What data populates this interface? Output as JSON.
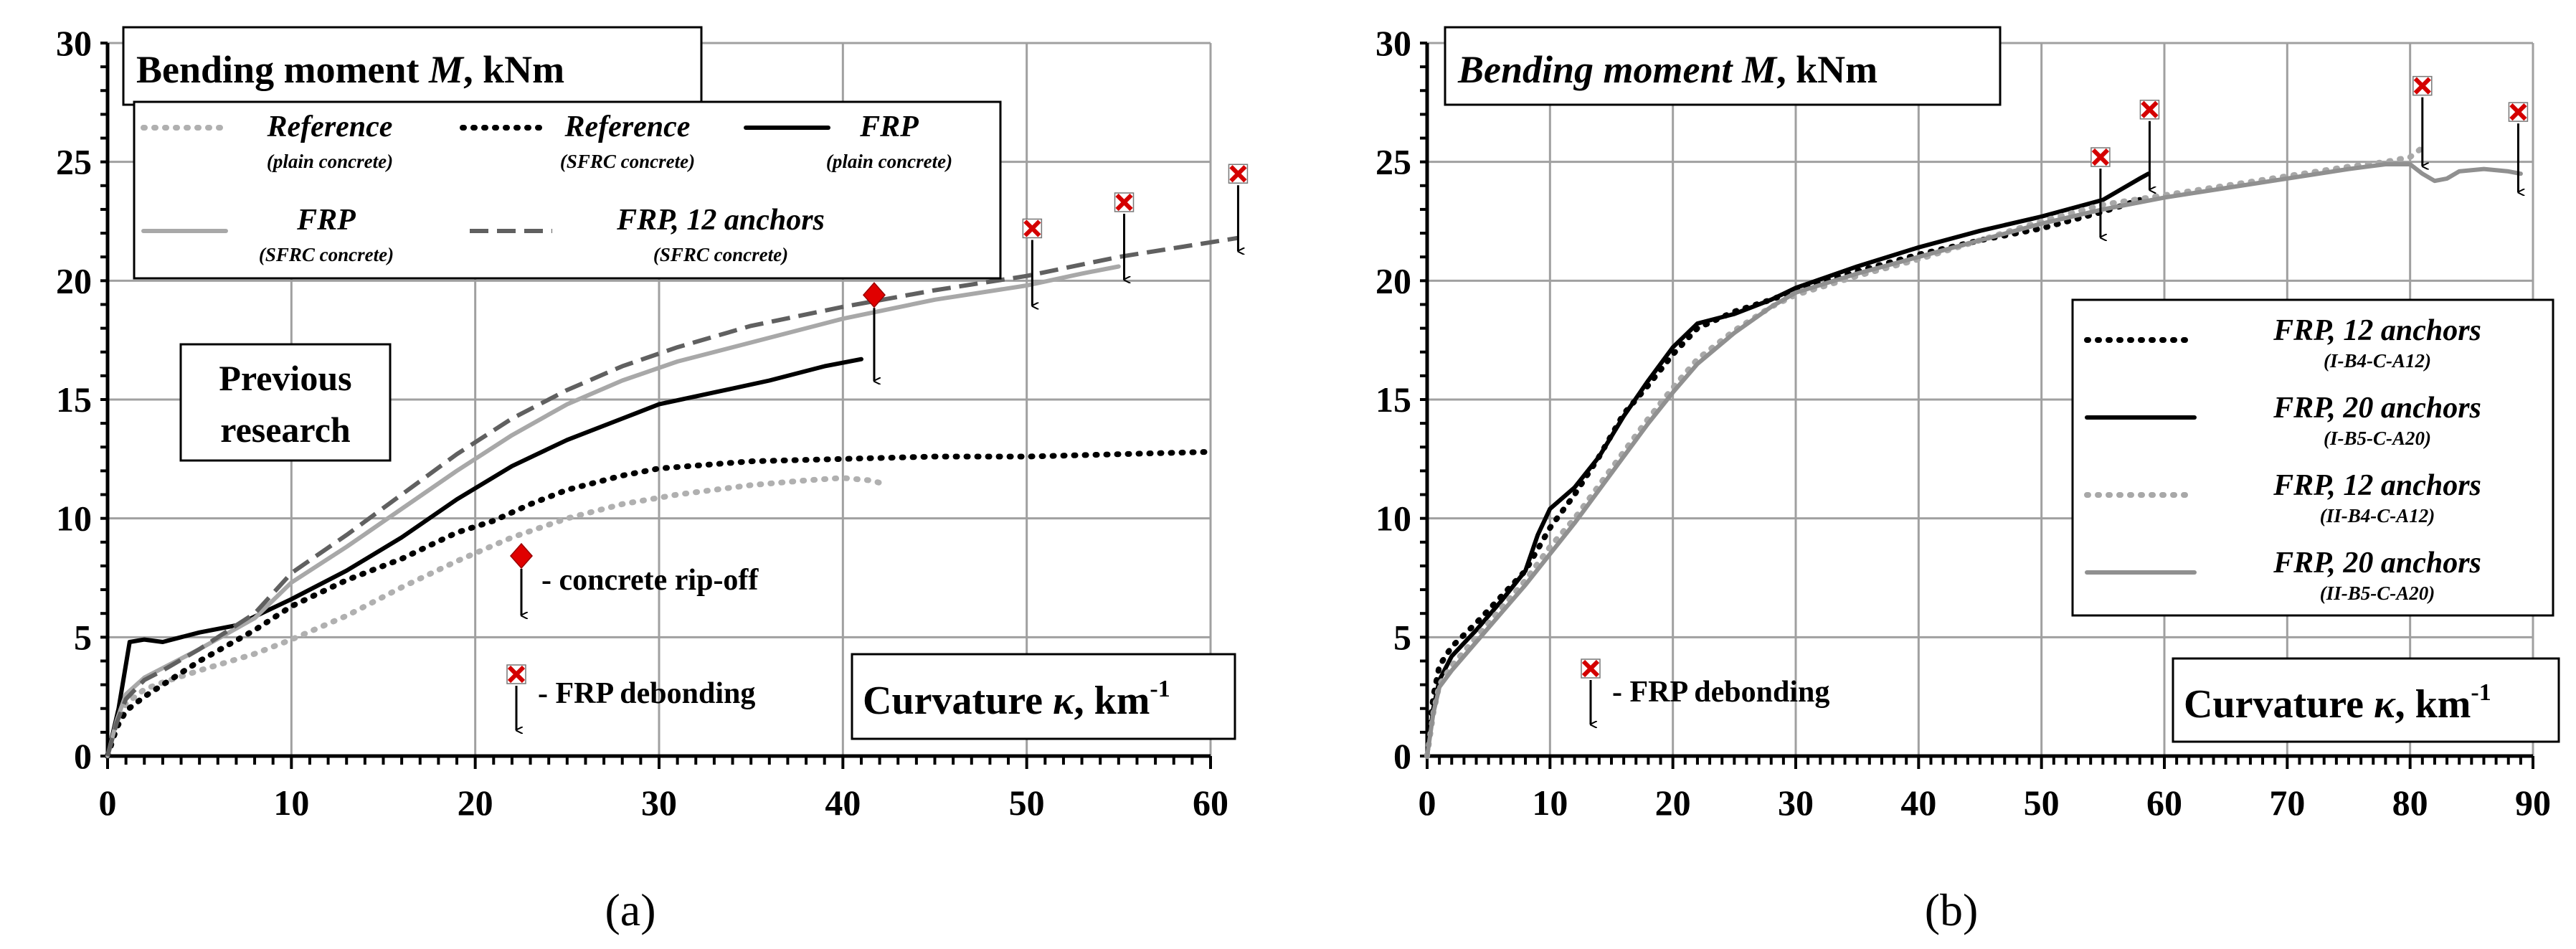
{
  "chart_data": [
    {
      "type": "line",
      "panel_label": "(a)",
      "ylabel_title": "Bending moment",
      "ylabel_var": "M",
      "ylabel_unit": ", kNm",
      "xlabel_title": "Curvature",
      "xlabel_var": "κ",
      "xlabel_unit": ", km",
      "xlabel_exp": "-1",
      "xlim": [
        0,
        60
      ],
      "ylim": [
        0,
        30
      ],
      "xticks": [
        0,
        10,
        20,
        30,
        40,
        50,
        60
      ],
      "yticks": [
        0,
        5,
        10,
        15,
        20,
        25,
        30
      ],
      "grid": true,
      "legend_position": "top-left",
      "inset_box": [
        "Previous",
        "research"
      ],
      "annotations": {
        "rip_off": "- concrete rip-off",
        "debonding": "- FRP debonding"
      },
      "series": [
        {
          "name": "Reference",
          "sub": "(plain concrete)",
          "color": "#b0b0b0",
          "style": "dotted",
          "points": [
            [
              0,
              0
            ],
            [
              0.5,
              1.2
            ],
            [
              1,
              2.2
            ],
            [
              2,
              2.8
            ],
            [
              3,
              3.1
            ],
            [
              5,
              3.6
            ],
            [
              8,
              4.3
            ],
            [
              10,
              4.9
            ],
            [
              13,
              5.9
            ],
            [
              16,
              7.1
            ],
            [
              19,
              8.2
            ],
            [
              22,
              9.2
            ],
            [
              25,
              10
            ],
            [
              28,
              10.6
            ],
            [
              31,
              11
            ],
            [
              35,
              11.4
            ],
            [
              38,
              11.6
            ],
            [
              40,
              11.7
            ],
            [
              41.5,
              11.6
            ],
            [
              42,
              11.5
            ]
          ]
        },
        {
          "name": "Reference",
          "sub": "(SFRC concrete)",
          "color": "#000000",
          "style": "dotted",
          "points": [
            [
              0,
              0
            ],
            [
              0.5,
              1.2
            ],
            [
              1,
              1.9
            ],
            [
              2,
              2.5
            ],
            [
              3,
              3
            ],
            [
              5,
              4
            ],
            [
              8,
              5.3
            ],
            [
              10,
              6.3
            ],
            [
              13,
              7.4
            ],
            [
              16,
              8.3
            ],
            [
              19,
              9.4
            ],
            [
              21,
              9.9
            ],
            [
              23,
              10.6
            ],
            [
              25,
              11.2
            ],
            [
              28,
              11.8
            ],
            [
              30,
              12.1
            ],
            [
              35,
              12.4
            ],
            [
              40,
              12.5
            ],
            [
              45,
              12.6
            ],
            [
              50,
              12.6
            ],
            [
              55,
              12.7
            ],
            [
              60,
              12.8
            ]
          ]
        },
        {
          "name": "FRP",
          "sub": "(plain concrete)",
          "color": "#000000",
          "style": "solid",
          "points": [
            [
              0,
              0
            ],
            [
              0.6,
              2
            ],
            [
              1.2,
              4.8
            ],
            [
              2,
              4.9
            ],
            [
              3,
              4.8
            ],
            [
              4,
              5
            ],
            [
              5,
              5.2
            ],
            [
              7,
              5.5
            ],
            [
              10,
              6.6
            ],
            [
              13,
              7.8
            ],
            [
              16,
              9.2
            ],
            [
              19,
              10.8
            ],
            [
              22,
              12.2
            ],
            [
              25,
              13.3
            ],
            [
              28,
              14.2
            ],
            [
              30,
              14.8
            ],
            [
              33,
              15.3
            ],
            [
              36,
              15.8
            ],
            [
              39,
              16.4
            ],
            [
              41,
              16.7
            ]
          ]
        },
        {
          "name": "FRP",
          "sub": "(SFRC concrete)",
          "color": "#a8a8a8",
          "style": "solid",
          "points": [
            [
              0,
              0
            ],
            [
              0.5,
              1.5
            ],
            [
              1,
              2.6
            ],
            [
              2,
              3.3
            ],
            [
              3,
              3.7
            ],
            [
              5,
              4.5
            ],
            [
              8,
              5.8
            ],
            [
              10,
              7.3
            ],
            [
              13,
              8.8
            ],
            [
              16,
              10.4
            ],
            [
              19,
              12
            ],
            [
              22,
              13.5
            ],
            [
              25,
              14.8
            ],
            [
              28,
              15.8
            ],
            [
              31,
              16.6
            ],
            [
              35,
              17.4
            ],
            [
              40,
              18.4
            ],
            [
              45,
              19.2
            ],
            [
              50,
              19.8
            ],
            [
              53,
              20.3
            ],
            [
              55,
              20.6
            ]
          ]
        },
        {
          "name": "FRP, 12 anchors",
          "sub": "(SFRC concrete)",
          "color": "#606060",
          "style": "dashed",
          "points": [
            [
              0,
              0
            ],
            [
              0.5,
              1.4
            ],
            [
              1,
              2.4
            ],
            [
              2,
              3.2
            ],
            [
              3,
              3.6
            ],
            [
              5,
              4.5
            ],
            [
              8,
              6
            ],
            [
              10,
              7.7
            ],
            [
              13,
              9.3
            ],
            [
              16,
              11
            ],
            [
              19,
              12.7
            ],
            [
              22,
              14.2
            ],
            [
              25,
              15.4
            ],
            [
              28,
              16.4
            ],
            [
              31,
              17.2
            ],
            [
              35,
              18.1
            ],
            [
              40,
              18.9
            ],
            [
              45,
              19.6
            ],
            [
              50,
              20.2
            ],
            [
              55,
              21
            ],
            [
              61.5,
              21.8
            ]
          ]
        }
      ],
      "rip_markers": [
        [
          41,
          19.4
        ]
      ],
      "debond_markers": [
        [
          50.3,
          22.2
        ],
        [
          55.3,
          23.3
        ],
        [
          61.5,
          24.5
        ]
      ]
    },
    {
      "type": "line",
      "panel_label": "(b)",
      "ylabel_title": "Bending moment",
      "ylabel_var": "M",
      "ylabel_unit": ", kNm",
      "xlabel_title": "Curvature",
      "xlabel_var": "κ",
      "xlabel_unit": ", km",
      "xlabel_exp": "-1",
      "xlim": [
        0,
        90
      ],
      "ylim": [
        0,
        30
      ],
      "xticks": [
        0,
        10,
        20,
        30,
        40,
        50,
        60,
        70,
        80,
        90
      ],
      "yticks": [
        0,
        5,
        10,
        15,
        20,
        25,
        30
      ],
      "grid": true,
      "legend_position": "right",
      "annotations": {
        "debonding": "- FRP debonding"
      },
      "series": [
        {
          "name": "FRP, 12 anchors",
          "sub": "(I-B4-C-A12)",
          "color": "#000000",
          "style": "dotted",
          "points": [
            [
              0,
              0
            ],
            [
              0.5,
              2.5
            ],
            [
              1,
              3.8
            ],
            [
              2,
              4.6
            ],
            [
              4,
              5.6
            ],
            [
              6,
              6.7
            ],
            [
              8,
              7.8
            ],
            [
              10,
              9.6
            ],
            [
              12,
              11
            ],
            [
              14,
              12.6
            ],
            [
              16,
              14.4
            ],
            [
              18,
              15.6
            ],
            [
              20,
              16.9
            ],
            [
              22,
              18
            ],
            [
              25,
              18.7
            ],
            [
              28,
              19.2
            ],
            [
              30,
              19.6
            ],
            [
              35,
              20.4
            ],
            [
              40,
              21.1
            ],
            [
              45,
              21.7
            ],
            [
              50,
              22.2
            ],
            [
              55,
              22.9
            ],
            [
              58,
              23.4
            ]
          ]
        },
        {
          "name": "FRP, 20 anchors",
          "sub": "(I-B5-C-A20)",
          "color": "#000000",
          "style": "solid",
          "points": [
            [
              0,
              0
            ],
            [
              0.5,
              2
            ],
            [
              1,
              3.2
            ],
            [
              2,
              4.2
            ],
            [
              4,
              5.3
            ],
            [
              6,
              6.5
            ],
            [
              8,
              7.8
            ],
            [
              9,
              9.3
            ],
            [
              10,
              10.4
            ],
            [
              12,
              11.3
            ],
            [
              14,
              12.6
            ],
            [
              16,
              14.3
            ],
            [
              18,
              15.8
            ],
            [
              20,
              17.2
            ],
            [
              22,
              18.2
            ],
            [
              25,
              18.6
            ],
            [
              28,
              19.2
            ],
            [
              30,
              19.7
            ],
            [
              35,
              20.6
            ],
            [
              40,
              21.4
            ],
            [
              45,
              22.1
            ],
            [
              50,
              22.7
            ],
            [
              55,
              23.4
            ],
            [
              58,
              24.3
            ],
            [
              58.7,
              24.5
            ]
          ]
        },
        {
          "name": "FRP, 12 anchors",
          "sub": "(II-B4-C-A12)",
          "color": "#a8a8a8",
          "style": "dotted",
          "points": [
            [
              0,
              0
            ],
            [
              0.5,
              1.8
            ],
            [
              1,
              3
            ],
            [
              2,
              3.8
            ],
            [
              4,
              5
            ],
            [
              6,
              6.2
            ],
            [
              8,
              7.4
            ],
            [
              10,
              8.8
            ],
            [
              12,
              10
            ],
            [
              14,
              11.4
            ],
            [
              16,
              12.8
            ],
            [
              18,
              14.2
            ],
            [
              20,
              15.5
            ],
            [
              22,
              16.7
            ],
            [
              25,
              17.9
            ],
            [
              28,
              18.9
            ],
            [
              30,
              19.4
            ],
            [
              35,
              20.2
            ],
            [
              40,
              20.9
            ],
            [
              45,
              21.7
            ],
            [
              50,
              22.5
            ],
            [
              55,
              23.2
            ],
            [
              60,
              23.6
            ],
            [
              65,
              24
            ],
            [
              70,
              24.4
            ],
            [
              75,
              24.8
            ],
            [
              78,
              25
            ],
            [
              80,
              25.2
            ],
            [
              81,
              25.6
            ]
          ]
        },
        {
          "name": "FRP, 20 anchors",
          "sub": "(II-B5-C-A20)",
          "color": "#909090",
          "style": "solid",
          "points": [
            [
              0,
              0
            ],
            [
              0.5,
              1.8
            ],
            [
              1,
              2.9
            ],
            [
              2,
              3.6
            ],
            [
              4,
              4.8
            ],
            [
              6,
              6
            ],
            [
              8,
              7.2
            ],
            [
              10,
              8.5
            ],
            [
              12,
              9.8
            ],
            [
              14,
              11.2
            ],
            [
              16,
              12.6
            ],
            [
              18,
              14
            ],
            [
              20,
              15.3
            ],
            [
              22,
              16.5
            ],
            [
              25,
              17.8
            ],
            [
              28,
              18.9
            ],
            [
              30,
              19.5
            ],
            [
              35,
              20.3
            ],
            [
              40,
              21
            ],
            [
              45,
              21.7
            ],
            [
              50,
              22.4
            ],
            [
              55,
              23
            ],
            [
              60,
              23.5
            ],
            [
              65,
              23.9
            ],
            [
              70,
              24.3
            ],
            [
              75,
              24.7
            ],
            [
              78,
              24.9
            ],
            [
              80,
              24.9
            ],
            [
              81,
              24.5
            ],
            [
              82,
              24.2
            ],
            [
              83,
              24.3
            ],
            [
              84,
              24.6
            ],
            [
              86,
              24.7
            ],
            [
              88,
              24.6
            ],
            [
              89,
              24.5
            ]
          ]
        }
      ],
      "debond_markers": [
        [
          54.8,
          25.2
        ],
        [
          58.8,
          27.2
        ],
        [
          81,
          28.2
        ],
        [
          88.8,
          27.1
        ]
      ]
    }
  ]
}
